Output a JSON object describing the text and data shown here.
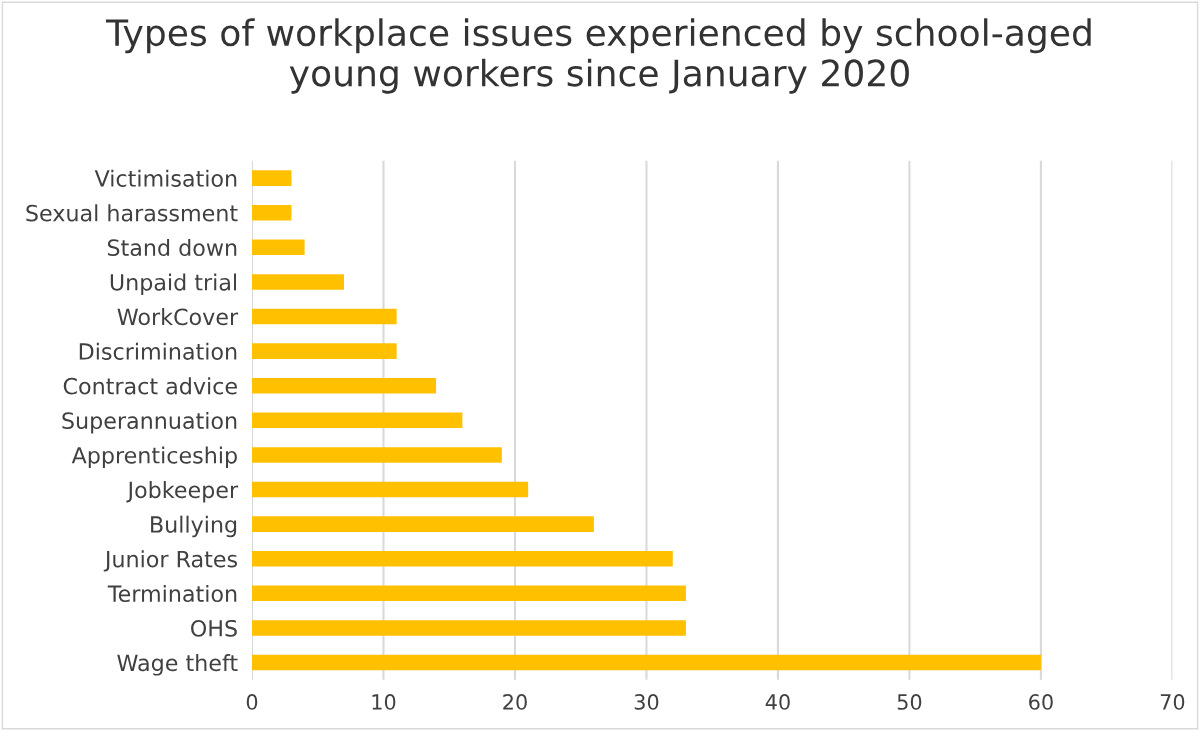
{
  "chart_data": {
    "type": "bar",
    "orientation": "horizontal",
    "title": "Types of workplace issues experienced by school-aged\nyoung workers since January 2020",
    "categories": [
      "Victimisation",
      "Sexual harassment",
      "Stand down",
      "Unpaid trial",
      "WorkCover",
      "Discrimination",
      "Contract advice",
      "Superannuation",
      "Apprenticeship",
      "Jobkeeper",
      "Bullying",
      "Junior Rates",
      "Termination",
      "OHS",
      "Wage theft"
    ],
    "values": [
      3,
      3,
      4,
      7,
      11,
      11,
      14,
      16,
      19,
      21,
      26,
      32,
      33,
      33,
      60
    ],
    "color": "#ffc000",
    "xlim": [
      0,
      70
    ],
    "xticks": [
      0,
      10,
      20,
      30,
      40,
      50,
      60,
      70
    ],
    "grid": "x"
  }
}
